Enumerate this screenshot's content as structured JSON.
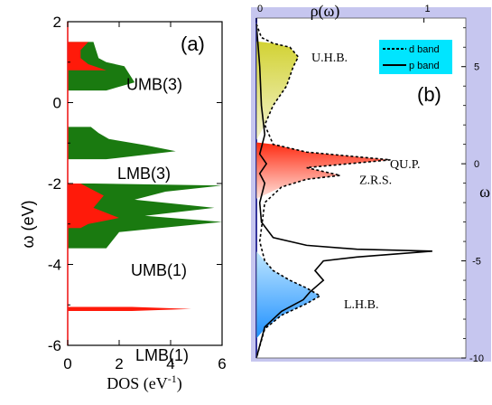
{
  "chart_data": [
    {
      "type": "area",
      "panel_label": "(a)",
      "xlabel": "DOS (eV",
      "xlabel_sup": "-1",
      "xlabel_close": ")",
      "ylabel": "ω (eV)",
      "xlim": [
        0,
        6
      ],
      "ylim": [
        -6,
        2
      ],
      "xticks": [
        "0",
        "2",
        "4",
        "6"
      ],
      "yticks": [
        "2",
        "0",
        "-2",
        "-4",
        "-6"
      ],
      "colors": {
        "red": "#ff1a0a",
        "green": "#1a7a10"
      },
      "series": [
        {
          "color": "green",
          "points": [
            [
              1.5,
              0.3
            ],
            [
              2.6,
              0.5
            ],
            [
              2.2,
              0.9
            ],
            [
              1.5,
              1.0
            ],
            [
              1.2,
              1.1
            ],
            [
              1.1,
              1.3
            ],
            [
              1.0,
              1.5
            ]
          ]
        },
        {
          "color": "red",
          "points": [
            [
              1.5,
              0.8
            ],
            [
              0.8,
              0.95
            ],
            [
              0.5,
              1.1
            ],
            [
              0.5,
              1.3
            ],
            [
              0.8,
              1.5
            ]
          ]
        },
        {
          "color": "green",
          "points": [
            [
              1.5,
              -1.4
            ],
            [
              4.2,
              -1.2
            ],
            [
              3.0,
              -1.05
            ],
            [
              1.6,
              -0.9
            ],
            [
              1.2,
              -0.75
            ],
            [
              0.9,
              -0.6
            ]
          ]
        },
        {
          "color": "green",
          "points": [
            [
              1.0,
              -2.0
            ],
            [
              6.0,
              -2.05
            ],
            [
              3.8,
              -2.2
            ],
            [
              2.6,
              -2.4
            ],
            [
              5.7,
              -2.6
            ],
            [
              3.0,
              -2.8
            ],
            [
              6.0,
              -2.95
            ],
            [
              2.0,
              -3.2
            ],
            [
              1.5,
              -3.6
            ]
          ]
        },
        {
          "color": "red",
          "points": [
            [
              0.5,
              -2.0
            ],
            [
              1.4,
              -2.3
            ],
            [
              1.0,
              -2.6
            ],
            [
              2.0,
              -2.85
            ],
            [
              0.8,
              -3.0
            ],
            [
              0.5,
              -3.1
            ]
          ]
        },
        {
          "color": "red",
          "points": [
            [
              2.5,
              -5.05
            ],
            [
              4.8,
              -5.1
            ],
            [
              2.5,
              -5.15
            ]
          ]
        }
      ],
      "bands": [
        {
          "label": "UMB(3)",
          "omega": 0.45
        },
        {
          "label": "LMB(3)",
          "omega": -1.75
        },
        {
          "label": "UMB(1)",
          "omega": -4.15
        },
        {
          "label": "LMB(1)",
          "omega": -6.25
        }
      ]
    },
    {
      "type": "line",
      "panel_label": "(b)",
      "xlabel": "ρ(ω)",
      "ylabel": "ω",
      "xlim": [
        0,
        1.25
      ],
      "ylim": [
        -10,
        7.5
      ],
      "xticks": [
        "0",
        "1"
      ],
      "yticks": [
        "5",
        "0",
        "-5",
        "-10"
      ],
      "legend": {
        "position": "top-right",
        "entries": [
          "d band",
          "p band"
        ]
      },
      "series": [
        {
          "name": "d band",
          "style": "dashed",
          "points": [
            [
              0.0,
              7.2
            ],
            [
              0.03,
              6.5
            ],
            [
              0.1,
              6.2
            ],
            [
              0.2,
              6.0
            ],
            [
              0.25,
              5.5
            ],
            [
              0.22,
              5.0
            ],
            [
              0.18,
              4.0
            ],
            [
              0.1,
              3.0
            ],
            [
              0.05,
              2.0
            ],
            [
              0.1,
              1.0
            ],
            [
              0.3,
              0.6
            ],
            [
              0.8,
              0.2
            ],
            [
              0.55,
              0.0
            ],
            [
              0.3,
              -0.2
            ],
            [
              0.5,
              -0.6
            ],
            [
              0.3,
              -0.8
            ],
            [
              0.15,
              -1.2
            ],
            [
              0.05,
              -2.0
            ],
            [
              0.02,
              -4.0
            ],
            [
              0.05,
              -5.0
            ],
            [
              0.1,
              -5.5
            ],
            [
              0.2,
              -6.0
            ],
            [
              0.3,
              -6.4
            ],
            [
              0.38,
              -6.8
            ],
            [
              0.3,
              -7.2
            ],
            [
              0.15,
              -7.8
            ],
            [
              0.05,
              -8.5
            ],
            [
              0.0,
              -10.0
            ]
          ]
        },
        {
          "name": "p band",
          "style": "solid",
          "points": [
            [
              0.0,
              7.2
            ],
            [
              0.02,
              5.0
            ],
            [
              0.03,
              3.0
            ],
            [
              0.05,
              1.5
            ],
            [
              0.02,
              0.5
            ],
            [
              0.06,
              0.0
            ],
            [
              0.02,
              -0.5
            ],
            [
              0.05,
              -1.0
            ],
            [
              0.02,
              -2.0
            ],
            [
              0.03,
              -3.0
            ],
            [
              0.1,
              -3.8
            ],
            [
              0.3,
              -4.2
            ],
            [
              0.6,
              -4.4
            ],
            [
              1.05,
              -4.5
            ],
            [
              0.6,
              -4.8
            ],
            [
              0.4,
              -5.0
            ],
            [
              0.35,
              -5.5
            ],
            [
              0.4,
              -6.0
            ],
            [
              0.32,
              -6.6
            ],
            [
              0.28,
              -7.0
            ],
            [
              0.15,
              -7.6
            ],
            [
              0.05,
              -8.4
            ],
            [
              0.0,
              -10.0
            ]
          ]
        }
      ],
      "annotations": [
        {
          "label": "U.H.B.",
          "omega": 5.5
        },
        {
          "label": "QU.P.",
          "omega": 0.0
        },
        {
          "label": "Z.R.S.",
          "omega": -0.8
        },
        {
          "label": "L.H.B.",
          "omega": -7.2
        }
      ]
    }
  ]
}
